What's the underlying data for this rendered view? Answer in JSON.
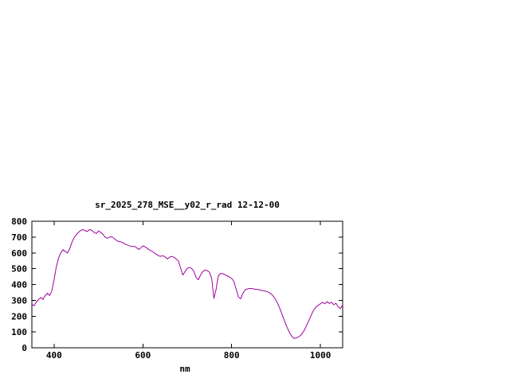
{
  "window": {
    "background": "#ffffff"
  },
  "chart_data": {
    "type": "line",
    "title": "sr_2025_278_MSE__y02_r_rad 12-12-00",
    "xlabel": "nm",
    "ylabel": "",
    "xlim": [
      350,
      1050
    ],
    "ylim": [
      0,
      800
    ],
    "xticks": [
      400,
      600,
      800,
      1000
    ],
    "yticks": [
      0,
      100,
      200,
      300,
      400,
      500,
      600,
      700,
      800
    ],
    "grid": false,
    "legend_position": "none",
    "line_color": "#a000a0",
    "axis_color": "#000000",
    "series": [
      {
        "name": "sr_2025_278_MSE__y02_r_rad",
        "points": [
          [
            350,
            275
          ],
          [
            355,
            265
          ],
          [
            360,
            290
          ],
          [
            365,
            305
          ],
          [
            370,
            318
          ],
          [
            375,
            305
          ],
          [
            380,
            330
          ],
          [
            385,
            345
          ],
          [
            390,
            330
          ],
          [
            395,
            360
          ],
          [
            400,
            430
          ],
          [
            405,
            510
          ],
          [
            410,
            565
          ],
          [
            415,
            600
          ],
          [
            420,
            620
          ],
          [
            425,
            610
          ],
          [
            430,
            600
          ],
          [
            435,
            625
          ],
          [
            440,
            665
          ],
          [
            445,
            695
          ],
          [
            450,
            715
          ],
          [
            455,
            730
          ],
          [
            460,
            742
          ],
          [
            465,
            748
          ],
          [
            470,
            740
          ],
          [
            475,
            735
          ],
          [
            480,
            748
          ],
          [
            485,
            742
          ],
          [
            490,
            730
          ],
          [
            495,
            722
          ],
          [
            500,
            738
          ],
          [
            505,
            730
          ],
          [
            510,
            718
          ],
          [
            515,
            700
          ],
          [
            520,
            692
          ],
          [
            525,
            700
          ],
          [
            530,
            702
          ],
          [
            535,
            692
          ],
          [
            540,
            680
          ],
          [
            545,
            672
          ],
          [
            550,
            670
          ],
          [
            555,
            665
          ],
          [
            560,
            655
          ],
          [
            565,
            650
          ],
          [
            570,
            645
          ],
          [
            575,
            640
          ],
          [
            580,
            642
          ],
          [
            585,
            635
          ],
          [
            590,
            622
          ],
          [
            595,
            630
          ],
          [
            600,
            645
          ],
          [
            605,
            638
          ],
          [
            610,
            628
          ],
          [
            615,
            618
          ],
          [
            620,
            612
          ],
          [
            625,
            602
          ],
          [
            630,
            592
          ],
          [
            635,
            582
          ],
          [
            640,
            578
          ],
          [
            645,
            582
          ],
          [
            650,
            575
          ],
          [
            655,
            562
          ],
          [
            660,
            572
          ],
          [
            665,
            578
          ],
          [
            670,
            572
          ],
          [
            675,
            562
          ],
          [
            680,
            548
          ],
          [
            685,
            505
          ],
          [
            690,
            460
          ],
          [
            695,
            482
          ],
          [
            700,
            502
          ],
          [
            705,
            508
          ],
          [
            710,
            500
          ],
          [
            715,
            482
          ],
          [
            720,
            445
          ],
          [
            725,
            430
          ],
          [
            730,
            460
          ],
          [
            735,
            482
          ],
          [
            740,
            492
          ],
          [
            745,
            488
          ],
          [
            750,
            478
          ],
          [
            755,
            440
          ],
          [
            760,
            312
          ],
          [
            765,
            370
          ],
          [
            770,
            455
          ],
          [
            775,
            470
          ],
          [
            780,
            468
          ],
          [
            785,
            462
          ],
          [
            790,
            455
          ],
          [
            795,
            448
          ],
          [
            800,
            438
          ],
          [
            805,
            420
          ],
          [
            810,
            372
          ],
          [
            815,
            322
          ],
          [
            820,
            310
          ],
          [
            825,
            342
          ],
          [
            830,
            365
          ],
          [
            835,
            372
          ],
          [
            840,
            375
          ],
          [
            845,
            375
          ],
          [
            850,
            372
          ],
          [
            855,
            370
          ],
          [
            860,
            368
          ],
          [
            865,
            365
          ],
          [
            870,
            362
          ],
          [
            875,
            358
          ],
          [
            880,
            355
          ],
          [
            885,
            348
          ],
          [
            890,
            338
          ],
          [
            895,
            322
          ],
          [
            900,
            300
          ],
          [
            905,
            272
          ],
          [
            910,
            238
          ],
          [
            915,
            200
          ],
          [
            920,
            162
          ],
          [
            925,
            128
          ],
          [
            930,
            98
          ],
          [
            935,
            75
          ],
          [
            940,
            60
          ],
          [
            945,
            62
          ],
          [
            950,
            68
          ],
          [
            955,
            78
          ],
          [
            960,
            95
          ],
          [
            965,
            118
          ],
          [
            970,
            148
          ],
          [
            975,
            180
          ],
          [
            980,
            212
          ],
          [
            985,
            240
          ],
          [
            990,
            258
          ],
          [
            995,
            268
          ],
          [
            1000,
            278
          ],
          [
            1005,
            288
          ],
          [
            1010,
            278
          ],
          [
            1015,
            292
          ],
          [
            1020,
            280
          ],
          [
            1025,
            288
          ],
          [
            1030,
            272
          ],
          [
            1035,
            282
          ],
          [
            1040,
            258
          ],
          [
            1045,
            248
          ],
          [
            1050,
            272
          ]
        ]
      }
    ]
  }
}
